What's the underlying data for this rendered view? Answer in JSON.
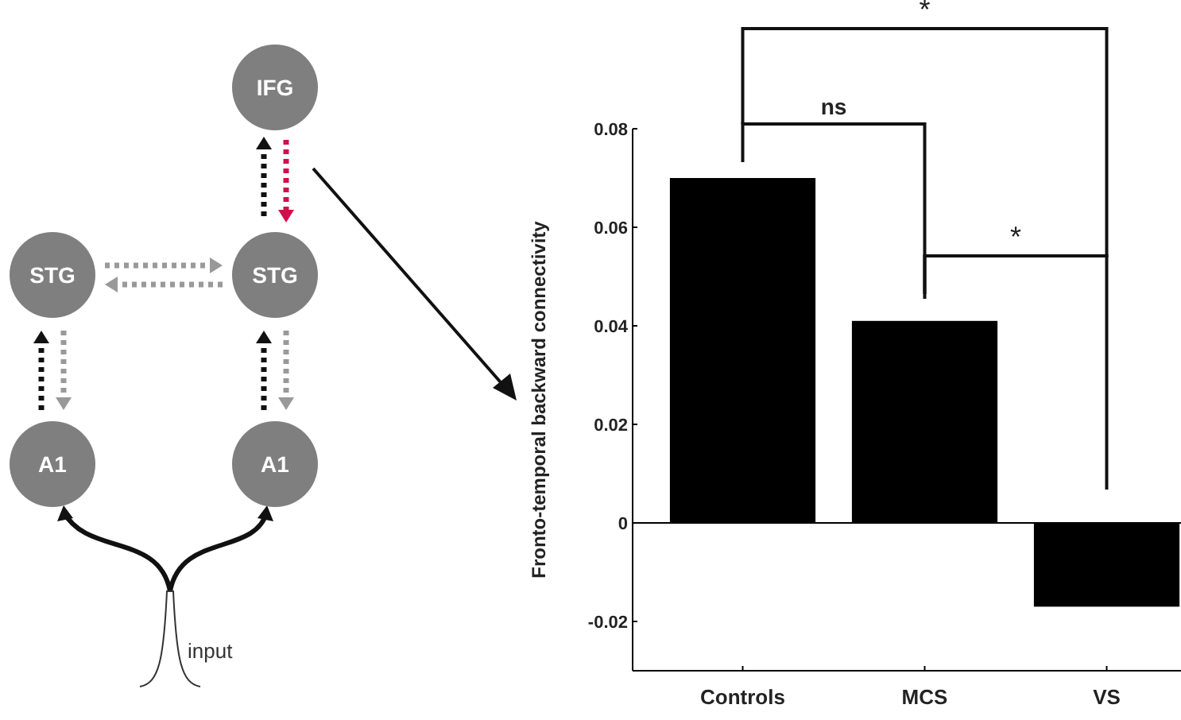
{
  "chart_data": {
    "type": "bar",
    "ylabel": "Fronto-temporal backward connectivity",
    "categories": [
      "Controls",
      "MCS",
      "VS"
    ],
    "values": [
      0.07,
      0.041,
      -0.017
    ],
    "color": "#000000",
    "ylim": [
      -0.03,
      0.08
    ],
    "yticks": [
      {
        "value": -0.02,
        "label": "-0.02"
      },
      0,
      {
        "value": 0.02,
        "label": "0.02"
      },
      {
        "value": 0.04,
        "label": "0.04"
      },
      {
        "value": 0.06,
        "label": "0.06"
      },
      {
        "value": 0.08,
        "label": "0.08"
      }
    ],
    "grid": false,
    "ref_lines": [
      {
        "axis": "y",
        "value": 0,
        "color": "#000000"
      }
    ],
    "annotations": [
      "ns",
      "*",
      "*",
      "IFG",
      "STG",
      "STG",
      "A1",
      "A1",
      "input"
    ]
  }
}
